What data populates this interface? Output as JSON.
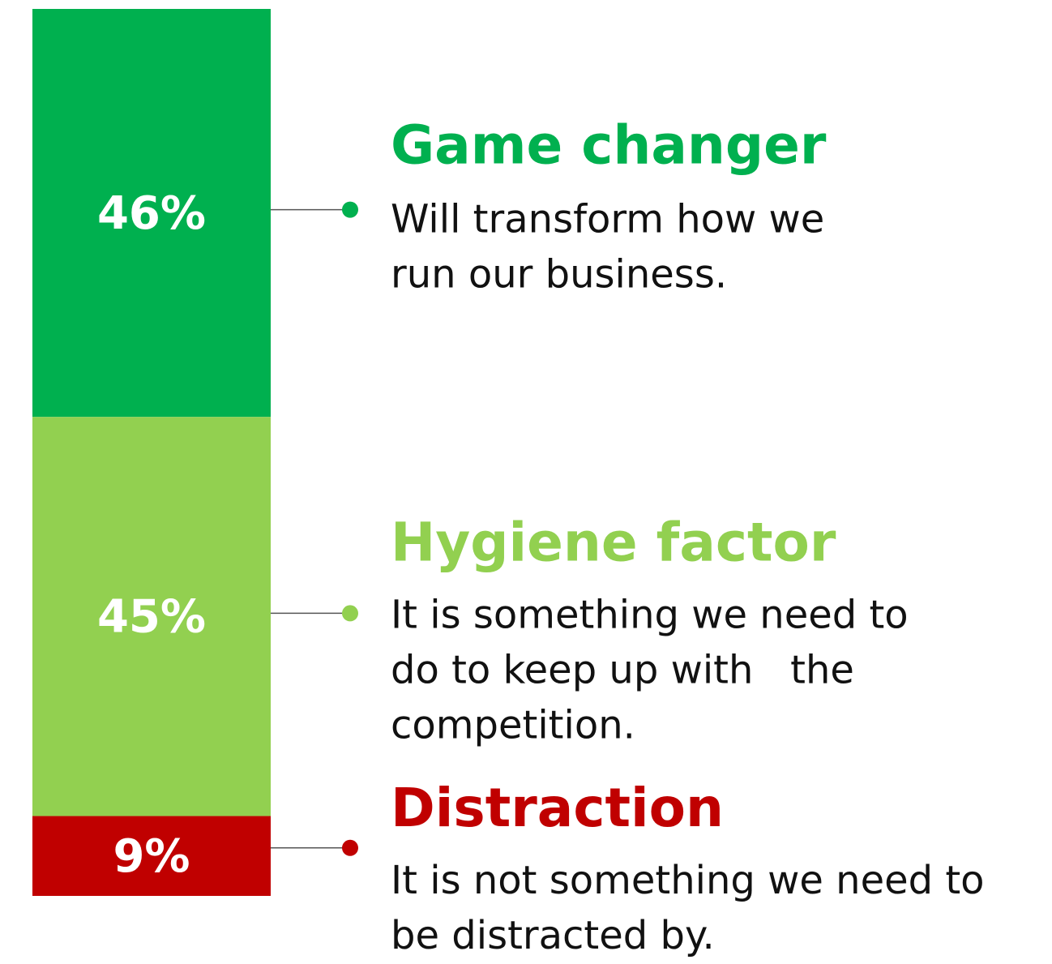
{
  "chart_data": {
    "type": "stacked_bar",
    "ylim": [
      0,
      100
    ],
    "series": [
      {
        "name": "Game changer",
        "color": "#00b04f",
        "values": [
          46
        ],
        "value_labels": [
          "46%"
        ],
        "description": [
          "Will transform how we",
          "run our business."
        ]
      },
      {
        "name": "Hygiene factor",
        "color": "#92d050",
        "values": [
          45
        ],
        "value_labels": [
          "45%"
        ],
        "description": [
          "It is something we need to",
          "do to keep up with   the",
          "competition."
        ]
      },
      {
        "name": "Distraction",
        "color": "#c00000",
        "values": [
          9
        ],
        "value_labels": [
          "9%"
        ],
        "description": [
          "It is not something we need to",
          "be distracted by."
        ]
      }
    ]
  }
}
